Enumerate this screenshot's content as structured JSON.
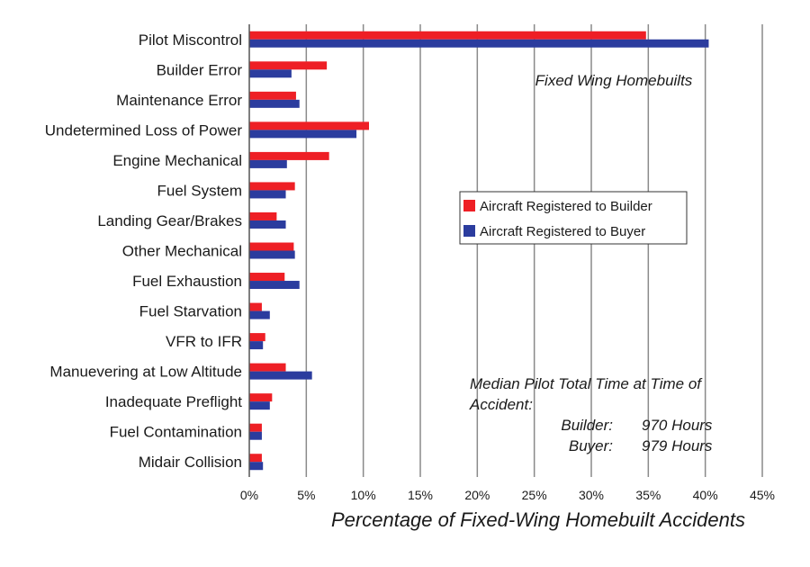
{
  "chart_data": {
    "type": "bar",
    "orientation": "horizontal",
    "categories": [
      "Pilot Miscontrol",
      "Builder Error",
      "Maintenance Error",
      "Undetermined Loss of Power",
      "Engine Mechanical",
      "Fuel System",
      "Landing Gear/Brakes",
      "Other Mechanical",
      "Fuel Exhaustion",
      "Fuel Starvation",
      "VFR to IFR",
      "Manuevering at Low Altitude",
      "Inadequate Preflight",
      "Fuel Contamination",
      "Midair Collision"
    ],
    "series": [
      {
        "name": "Aircraft Registered to Builder",
        "color": "#ee1f25",
        "values": [
          34.8,
          6.8,
          4.1,
          10.5,
          7.0,
          4.0,
          2.4,
          3.9,
          3.1,
          1.1,
          1.4,
          3.2,
          2.0,
          1.1,
          1.1
        ]
      },
      {
        "name": "Aircraft Registered to Buyer",
        "color": "#2b3c9e",
        "values": [
          40.3,
          3.7,
          4.4,
          9.4,
          3.3,
          3.2,
          3.2,
          4.0,
          4.4,
          1.8,
          1.2,
          5.5,
          1.8,
          1.1,
          1.2
        ]
      }
    ],
    "xlim": [
      0,
      45
    ],
    "xticks": [
      "0%",
      "5%",
      "10%",
      "15%",
      "20%",
      "25%",
      "30%",
      "35%",
      "40%",
      "45%"
    ],
    "xlabel": "Percentage of Fixed-Wing Homebuilt Accidents",
    "grid": "vertical",
    "legend_position": "right-middle",
    "annotations": {
      "title": "Fixed Wing Homebuilts",
      "median_line1": "Median Pilot Total Time at Time of",
      "median_line2": "Accident:",
      "builder_label": "Builder:",
      "builder_value": "970 Hours",
      "buyer_label": "Buyer:",
      "buyer_value": "979 Hours"
    }
  }
}
